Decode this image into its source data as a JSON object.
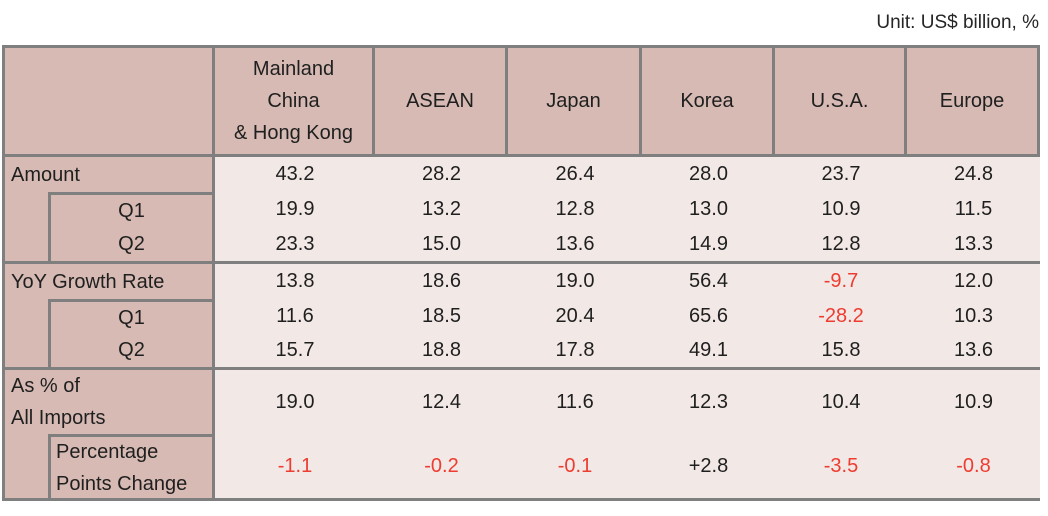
{
  "unit_note": "Unit: US$ billion, %",
  "colors": {
    "header_bg": "#d6bab3",
    "data_bg": "#f2e8e6",
    "border": "#7f7f7f",
    "text": "#1f1f1f",
    "negative": "#ee3c30"
  },
  "chart_data": {
    "type": "table",
    "unit_note": "Unit: US$ billion, %",
    "columns": [
      "Mainland\nChina\n& Hong Kong",
      "ASEAN",
      "Japan",
      "Korea",
      "U.S.A.",
      "Europe"
    ],
    "corner_label": "",
    "rows": [
      {
        "label": "Amount",
        "indent": false,
        "values": [
          "43.2",
          "28.2",
          "26.4",
          "28.0",
          "23.7",
          "24.8"
        ]
      },
      {
        "label": "Q1",
        "indent": true,
        "values": [
          "19.9",
          "13.2",
          "12.8",
          "13.0",
          "10.9",
          "11.5"
        ]
      },
      {
        "label": "Q2",
        "indent": true,
        "values": [
          "23.3",
          "15.0",
          "13.6",
          "14.9",
          "12.8",
          "13.3"
        ]
      },
      {
        "label": "YoY Growth Rate",
        "indent": false,
        "values": [
          "13.8",
          "18.6",
          "19.0",
          "56.4",
          "-9.7",
          "12.0"
        ],
        "red": [
          false,
          false,
          false,
          false,
          true,
          false
        ]
      },
      {
        "label": "Q1",
        "indent": true,
        "values": [
          "11.6",
          "18.5",
          "20.4",
          "65.6",
          "-28.2",
          "10.3"
        ],
        "red": [
          false,
          false,
          false,
          false,
          true,
          false
        ]
      },
      {
        "label": "Q2",
        "indent": true,
        "values": [
          "15.7",
          "18.8",
          "17.8",
          "49.1",
          "15.8",
          "13.6"
        ],
        "red": [
          false,
          false,
          false,
          false,
          false,
          false
        ]
      },
      {
        "label": "As % of\nAll Imports",
        "indent": false,
        "values": [
          "19.0",
          "12.4",
          "11.6",
          "12.3",
          "10.4",
          "10.9"
        ]
      },
      {
        "label": "Percentage\nPoints Change",
        "indent": true,
        "values": [
          "-1.1",
          "-0.2",
          "-0.1",
          "+2.8",
          "-3.5",
          "-0.8"
        ],
        "red": [
          true,
          true,
          true,
          false,
          true,
          true
        ]
      }
    ]
  }
}
